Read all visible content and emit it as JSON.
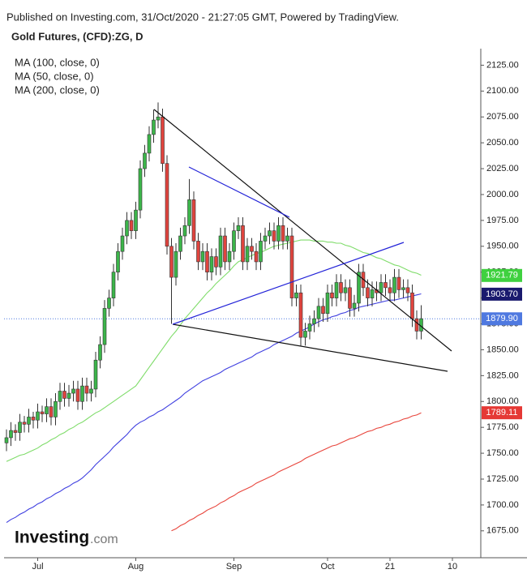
{
  "chart_data": {
    "type": "candlestick",
    "header": "Published on Investing.com, 31/Oct/2020 - 21:27:05 GMT, Powered by TradingView.",
    "title": "Gold Futures, (CFD):ZG, D",
    "logo": {
      "brand": "Investing",
      "suffix": ".com"
    },
    "categories": [
      null,
      null,
      null,
      null,
      null,
      null,
      null,
      "Jul",
      null,
      null,
      null,
      null,
      null,
      null,
      null,
      null,
      null,
      null,
      null,
      null,
      null,
      null,
      null,
      null,
      null,
      null,
      null,
      null,
      null,
      "Aug",
      null,
      null,
      null,
      null,
      null,
      null,
      null,
      null,
      null,
      null,
      null,
      null,
      null,
      null,
      null,
      null,
      null,
      null,
      null,
      null,
      null,
      "Sep",
      null,
      null,
      null,
      null,
      null,
      null,
      null,
      null,
      null,
      null,
      null,
      null,
      null,
      null,
      null,
      null,
      null,
      null,
      null,
      null,
      "Oct",
      null,
      null,
      null,
      null,
      null,
      null,
      null,
      null,
      null,
      null,
      null,
      null,
      null,
      "21",
      null,
      null,
      null,
      null,
      null,
      null,
      null,
      null,
      null,
      null,
      null,
      null,
      null,
      "10",
      null,
      null,
      null,
      null,
      null,
      null
    ],
    "candles": {
      "up_color": "#3cb54a",
      "down_color": "#e0443e",
      "edge_color": "#333333",
      "open": [
        1760,
        1765,
        1772,
        1770,
        1780,
        1778,
        1785,
        1782,
        1790,
        1788,
        1795,
        1785,
        1800,
        1810,
        1803,
        1808,
        1812,
        1800,
        1815,
        1808,
        1812,
        1840,
        1855,
        1890,
        1900,
        1925,
        1945,
        1960,
        1975,
        1965,
        1985,
        2025,
        2040,
        2058,
        2072,
        2075,
        2030,
        1950,
        1920,
        1945,
        1960,
        1970,
        1995,
        1955,
        1935,
        1945,
        1925,
        1940,
        1930,
        1960,
        1935,
        1945,
        1965,
        1970,
        1935,
        1950,
        1945,
        1935,
        1955,
        1960,
        1965,
        1955,
        1970,
        1955,
        1960,
        1900,
        1905,
        1862,
        1868,
        1875,
        1880,
        1892,
        1885,
        1905,
        1900,
        1915,
        1905,
        1910,
        1890,
        1895,
        1925,
        1910,
        1900,
        1908,
        1905,
        1915,
        1910,
        1905,
        1920,
        1908,
        1910,
        1905,
        1880,
        1868,
        null,
        null,
        null,
        null,
        null,
        null,
        null,
        null,
        null,
        null,
        null,
        null,
        null
      ],
      "high": [
        1773,
        1780,
        1778,
        1788,
        1786,
        1793,
        1790,
        1798,
        1796,
        1803,
        1803,
        1808,
        1818,
        1818,
        1816,
        1820,
        1820,
        1823,
        1823,
        1820,
        1848,
        1863,
        1898,
        1908,
        1933,
        1953,
        1968,
        1983,
        1983,
        1993,
        2033,
        2048,
        2066,
        2082,
        2089,
        2083,
        2038,
        1958,
        1953,
        1968,
        1978,
        2015,
        2003,
        1963,
        1953,
        1953,
        1948,
        1948,
        1968,
        1968,
        1953,
        1973,
        1978,
        1978,
        1958,
        1958,
        1953,
        1963,
        1968,
        1973,
        1973,
        1978,
        1978,
        1968,
        1968,
        1913,
        1913,
        1876,
        1883,
        1888,
        1900,
        1900,
        1913,
        1913,
        1923,
        1923,
        1918,
        1918,
        1903,
        1933,
        1933,
        1918,
        1916,
        1916,
        1923,
        1923,
        1918,
        1928,
        1928,
        1918,
        1918,
        1913,
        1888,
        1893,
        null,
        null,
        null,
        null,
        null,
        null,
        null,
        null,
        null,
        null,
        null,
        null,
        null
      ],
      "low": [
        1752,
        1757,
        1762,
        1762,
        1770,
        1770,
        1774,
        1774,
        1780,
        1780,
        1777,
        1777,
        1792,
        1795,
        1795,
        1800,
        1792,
        1792,
        1800,
        1800,
        1804,
        1832,
        1847,
        1882,
        1892,
        1917,
        1937,
        1952,
        1957,
        1957,
        1977,
        2017,
        2032,
        2050,
        2064,
        2022,
        1942,
        1875,
        1912,
        1937,
        1952,
        1962,
        1947,
        1927,
        1927,
        1917,
        1917,
        1922,
        1922,
        1927,
        1927,
        1937,
        1957,
        1927,
        1927,
        1937,
        1927,
        1927,
        1947,
        1952,
        1947,
        1947,
        1947,
        1947,
        1892,
        1892,
        1854,
        1854,
        1860,
        1867,
        1872,
        1877,
        1877,
        1892,
        1892,
        1897,
        1897,
        1882,
        1882,
        1887,
        1902,
        1892,
        1892,
        1897,
        1897,
        1902,
        1897,
        1897,
        1900,
        1900,
        1897,
        1872,
        1860,
        1860,
        null,
        null,
        null,
        null,
        null,
        null,
        null,
        null,
        null,
        null,
        null,
        null,
        null
      ],
      "close": [
        1765,
        1772,
        1770,
        1780,
        1778,
        1785,
        1782,
        1790,
        1788,
        1795,
        1785,
        1800,
        1810,
        1803,
        1808,
        1812,
        1800,
        1815,
        1808,
        1812,
        1840,
        1855,
        1890,
        1900,
        1925,
        1945,
        1960,
        1975,
        1965,
        1985,
        2025,
        2040,
        2058,
        2072,
        2075,
        2030,
        1950,
        1920,
        1945,
        1960,
        1970,
        1995,
        1955,
        1935,
        1945,
        1925,
        1940,
        1930,
        1960,
        1935,
        1945,
        1965,
        1970,
        1935,
        1950,
        1945,
        1935,
        1955,
        1960,
        1965,
        1955,
        1970,
        1955,
        1960,
        1900,
        1905,
        1862,
        1868,
        1875,
        1880,
        1892,
        1885,
        1905,
        1900,
        1915,
        1905,
        1910,
        1890,
        1895,
        1925,
        1910,
        1900,
        1908,
        1905,
        1915,
        1910,
        1905,
        1920,
        1908,
        1910,
        1905,
        1880,
        1868,
        1880,
        null,
        null,
        null,
        null,
        null,
        null,
        null,
        null,
        null,
        null,
        null,
        null,
        null
      ]
    },
    "series": [
      {
        "name": "MA (100, close, 0)",
        "color": "#3f3fe0",
        "label_color": "#1a1a6e",
        "last": {
          "value": 1903.7,
          "label": "1903.70"
        },
        "values": [
          1683,
          1686,
          1688,
          1691,
          1693,
          1696,
          1698,
          1701,
          1703,
          1706,
          1708,
          1711,
          1713,
          1716,
          1718,
          1721,
          1723,
          1726,
          1730,
          1734,
          1739,
          1743,
          1747,
          1751,
          1756,
          1760,
          1764,
          1768,
          1773,
          1777,
          1780,
          1782,
          1785,
          1787,
          1790,
          1792,
          1795,
          1798,
          1801,
          1804,
          1808,
          1811,
          1814,
          1817,
          1820,
          1822,
          1824,
          1826,
          1828,
          1831,
          1833,
          1835,
          1837,
          1839,
          1841,
          1843,
          1846,
          1848,
          1850,
          1852,
          1855,
          1857,
          1859,
          1861,
          1863,
          1866,
          1868,
          1870,
          1872,
          1875,
          1877,
          1879,
          1880,
          1882,
          1883,
          1885,
          1886,
          1888,
          1889,
          1891,
          1892,
          1893,
          1894,
          1895,
          1896,
          1897,
          1898,
          1898,
          1899,
          1900,
          1901,
          1902,
          1903,
          1904,
          null,
          null,
          null,
          null,
          null,
          null,
          null,
          null,
          null,
          null,
          null,
          null,
          null
        ]
      },
      {
        "name": "MA (50, close, 0)",
        "color": "#7fdc6a",
        "label_color": "#3fd13f",
        "last": {
          "value": 1921.79
        },
        "values": [
          1742,
          1744,
          1746,
          1748,
          1749,
          1751,
          1753,
          1755,
          1758,
          1760,
          1763,
          1765,
          1768,
          1770,
          1773,
          1775,
          1778,
          1780,
          1783,
          1786,
          1789,
          1791,
          1794,
          1797,
          1800,
          1803,
          1806,
          1809,
          1812,
          1815,
          1821,
          1827,
          1833,
          1839,
          1845,
          1851,
          1857,
          1863,
          1868,
          1874,
          1880,
          1885,
          1890,
          1895,
          1900,
          1905,
          1909,
          1914,
          1918,
          1922,
          1926,
          1931,
          1935,
          1937,
          1939,
          1941,
          1943,
          1944,
          1946,
          1948,
          1950,
          1951,
          1952,
          1953,
          1954,
          1955,
          1956,
          1956,
          1956,
          1955,
          1955,
          1955,
          1954,
          1954,
          1953,
          1953,
          1951,
          1950,
          1948,
          1946,
          1944,
          1943,
          1941,
          1939,
          1938,
          1936,
          1934,
          1932,
          1931,
          1929,
          1927,
          1925,
          1924,
          1922,
          null,
          null,
          null,
          null,
          null,
          null,
          null,
          null,
          null,
          null,
          null,
          null,
          null
        ]
      },
      {
        "name": "MA (200, close, 0)",
        "color": "#e8453c",
        "label_color": "#e53935",
        "last": {
          "value": 1789.11
        },
        "values": [
          null,
          null,
          null,
          null,
          null,
          null,
          null,
          null,
          null,
          null,
          null,
          null,
          null,
          null,
          null,
          null,
          null,
          null,
          null,
          null,
          null,
          null,
          null,
          null,
          null,
          null,
          null,
          null,
          null,
          null,
          null,
          null,
          null,
          null,
          null,
          null,
          null,
          1675,
          1677,
          1680,
          1682,
          1685,
          1687,
          1690,
          1692,
          1695,
          1697,
          1699,
          1702,
          1704,
          1707,
          1709,
          1712,
          1714,
          1716,
          1718,
          1721,
          1723,
          1725,
          1727,
          1729,
          1732,
          1734,
          1736,
          1738,
          1740,
          1742,
          1745,
          1747,
          1749,
          1751,
          1753,
          1755,
          1757,
          1758,
          1760,
          1762,
          1764,
          1765,
          1767,
          1769,
          1771,
          1772,
          1774,
          1775,
          1777,
          1778,
          1780,
          1781,
          1783,
          1784,
          1786,
          1787,
          1789,
          null,
          null,
          null,
          null,
          null,
          null,
          null,
          null,
          null,
          null,
          null,
          null,
          null
        ]
      }
    ],
    "last_price": {
      "value": 1879.9,
      "label": "1879.90",
      "color": "#4f79e0"
    },
    "ylim": [
      1649,
      2141
    ],
    "yticks": [
      {
        "value": 1675,
        "label": "1675.00"
      },
      {
        "value": 1700,
        "label": "1700.00"
      },
      {
        "value": 1725,
        "label": "1725.00"
      },
      {
        "value": 1750,
        "label": "1750.00"
      },
      {
        "value": 1775,
        "label": "1775.00"
      },
      {
        "value": 1800,
        "label": "1800.00"
      },
      {
        "value": 1825,
        "label": "1825.00"
      },
      {
        "value": 1850,
        "label": "1850.00"
      },
      {
        "value": 1875,
        "label": "1875.00"
      },
      {
        "value": 1900,
        "label": "1900.00"
      },
      {
        "value": 1925,
        "label": "1925.00"
      },
      {
        "value": 1950,
        "label": "1950.00"
      },
      {
        "value": 1975,
        "label": "1975.00"
      },
      {
        "value": 2000,
        "label": "2000.00"
      },
      {
        "value": 2025,
        "label": "2025.00"
      },
      {
        "value": 2050,
        "label": "2050.00"
      },
      {
        "value": 2075,
        "label": "2075.00"
      },
      {
        "value": 2100,
        "label": "2100.00"
      },
      {
        "value": 2125,
        "label": "2125.00"
      }
    ]
  }
}
